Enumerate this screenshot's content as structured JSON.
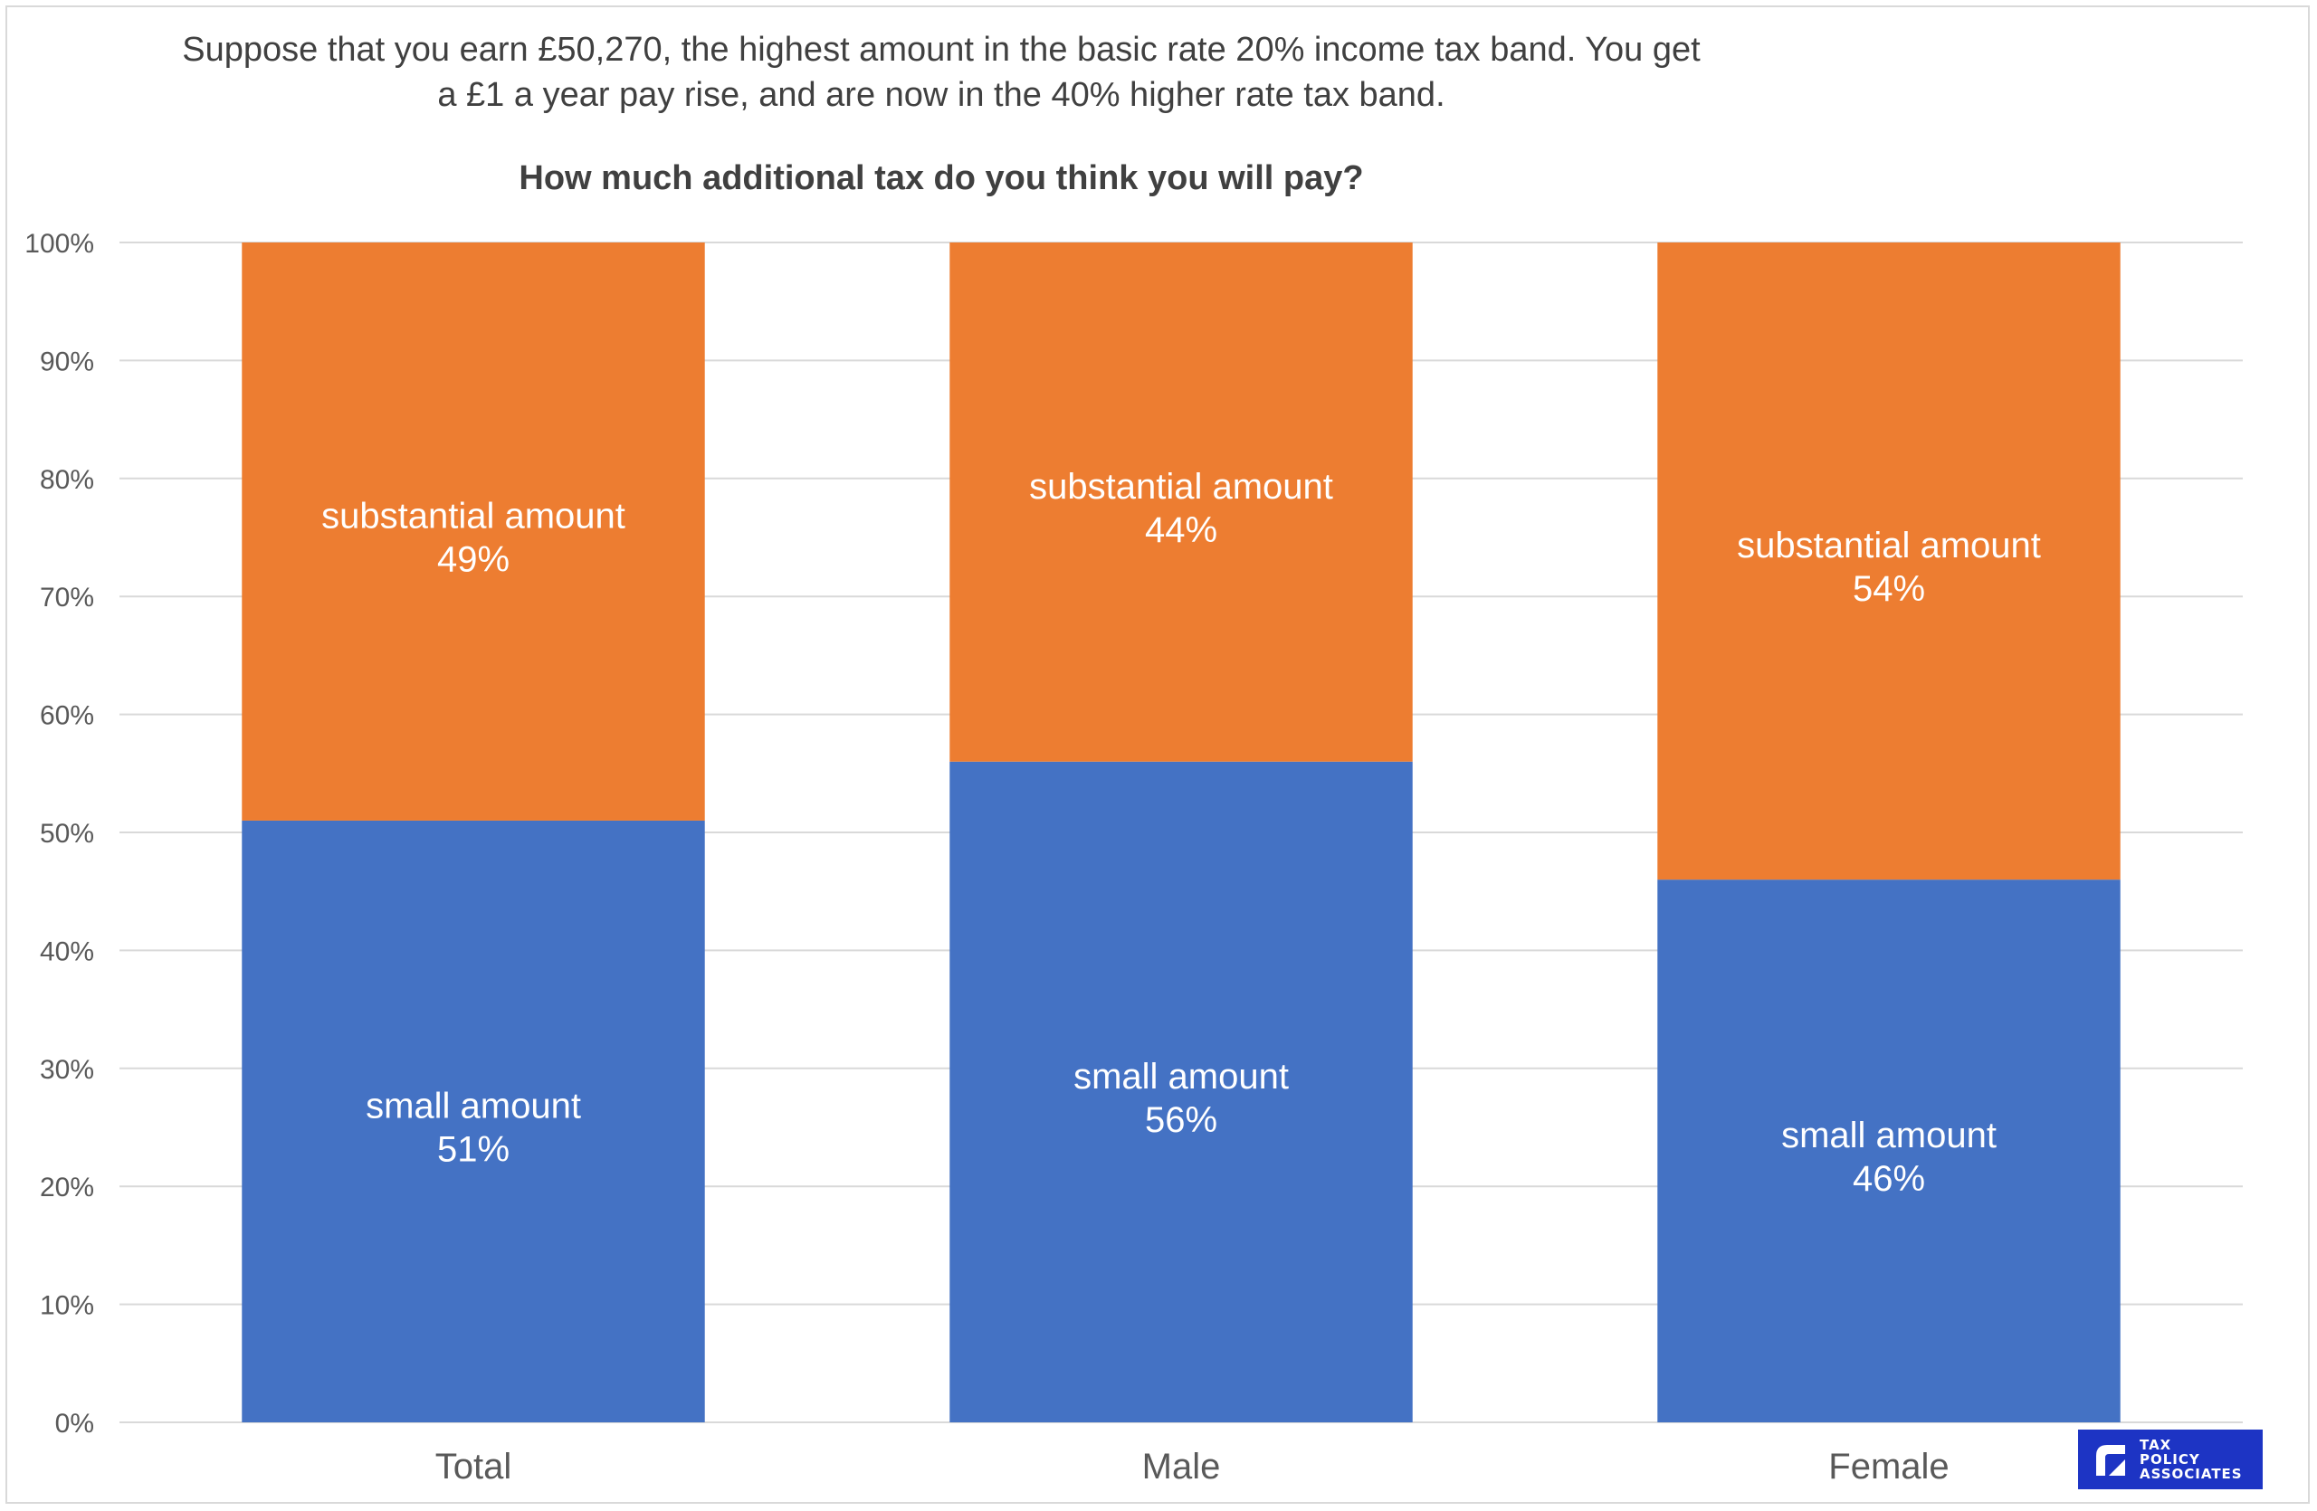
{
  "chart_data": {
    "type": "bar",
    "stacked": true,
    "subtitle": "Suppose that you earn £50,270, the highest amount in the basic rate 20% income tax band. You get a £1 a year pay rise, and are now in the 40% higher rate tax band.",
    "title": "How much additional tax do you think you will pay?",
    "categories": [
      "Total",
      "Male",
      "Female"
    ],
    "series": [
      {
        "name": "small amount",
        "values": [
          51,
          56,
          46
        ],
        "color": "#4472c4"
      },
      {
        "name": "substantial amount",
        "values": [
          49,
          44,
          54
        ],
        "color": "#ed7d31"
      }
    ],
    "data_labels": {
      "small amount": [
        "small amount",
        "small amount",
        "small amount"
      ],
      "substantial amount": [
        "substantial amount",
        "substantial amount",
        "substantial amount"
      ]
    },
    "value_labels": {
      "small amount": [
        "51%",
        "56%",
        "46%"
      ],
      "substantial amount": [
        "49%",
        "44%",
        "54%"
      ]
    },
    "y_ticks": [
      "0%",
      "10%",
      "20%",
      "30%",
      "40%",
      "50%",
      "60%",
      "70%",
      "80%",
      "90%",
      "100%"
    ],
    "ylim": [
      0,
      100
    ],
    "grid": true,
    "legend": "none",
    "gridline_color": "#d9d9d9",
    "axis_text_color": "#595959"
  },
  "logo": {
    "text": "TAX\nPOLICY\nASSOCIATES",
    "color": "#1d34c4"
  }
}
